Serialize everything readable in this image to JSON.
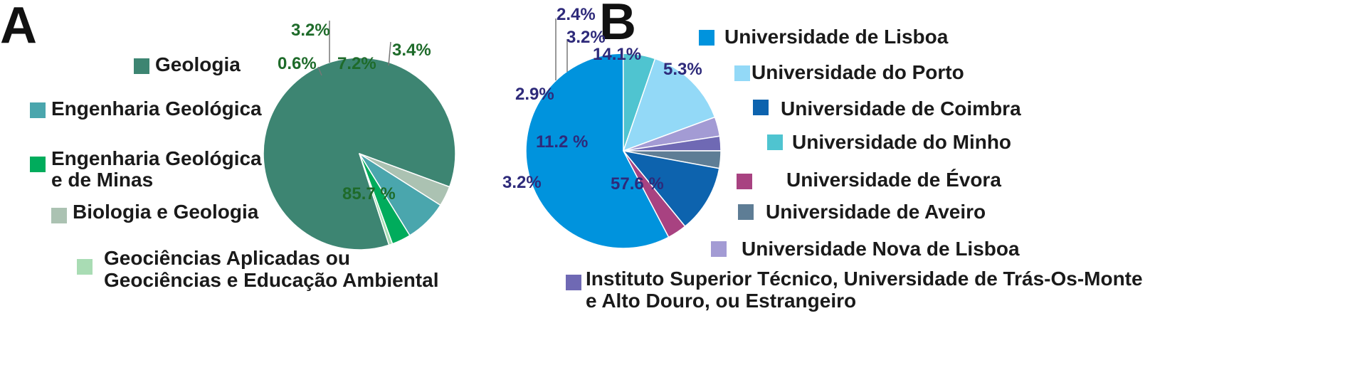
{
  "chart_data": [
    {
      "type": "pie",
      "panel": "A",
      "categories": [
        "Geologia",
        "Engenharia Geológica",
        "Engenharia Geológica e de Minas",
        "Biologia e Geologia",
        "Geociências Aplicadas ou Geociências e Educação Ambiental"
      ],
      "legend_lines": [
        [
          "Geologia"
        ],
        [
          "Engenharia Geológica"
        ],
        [
          "Engenharia Geológica",
          "e de Minas"
        ],
        [
          "Biologia e Geologia"
        ],
        [
          "Geociências Aplicadas ou",
          "Geociências e Educação Ambiental"
        ]
      ],
      "values": [
        85.7,
        7.2,
        3.2,
        3.4,
        0.6
      ],
      "labels": [
        "85.7 %",
        "7.2%",
        "3.2%",
        "3.4%",
        "0.6%"
      ],
      "colors": [
        "#3d8572",
        "#4aa6ad",
        "#00ac5c",
        "#abc2b2",
        "#a9dcb4"
      ],
      "legend": "left"
    },
    {
      "type": "pie",
      "panel": "B",
      "categories": [
        "Universidade de Lisboa",
        "Universidade do Porto",
        "Universidade de Coimbra",
        "Universidade do Minho",
        "Universidade de Évora",
        "Universidade de Aveiro",
        "Universidade Nova de Lisboa",
        "Instituto Superior Técnico, Universidade de Trás-Os-Monte e Alto Douro, ou Estrangeiro"
      ],
      "legend_lines": [
        [
          "Universidade de Lisboa"
        ],
        [
          "Universidade do Porto"
        ],
        [
          "Universidade de Coimbra"
        ],
        [
          "Universidade do Minho"
        ],
        [
          "Universidade de Évora"
        ],
        [
          "Universidade de Aveiro"
        ],
        [
          "Universidade Nova de Lisboa"
        ],
        [
          "Instituto Superior Técnico, Universidade de Trás-Os-Monte",
          "e Alto Douro, ou Estrangeiro"
        ]
      ],
      "values": [
        57.6,
        14.1,
        11.2,
        5.3,
        3.2,
        2.9,
        3.2,
        2.4
      ],
      "labels": [
        "57.6 %",
        "14.1%",
        "11.2 %",
        "5.3%",
        "3.2%",
        "2.9%",
        "3.2%",
        "2.4%"
      ],
      "colors": [
        "#0093dd",
        "#93d9f7",
        "#0d63ae",
        "#4fc4d0",
        "#a84281",
        "#5e7d95",
        "#a39bd4",
        "#6f69b4"
      ],
      "legend": "right"
    }
  ]
}
